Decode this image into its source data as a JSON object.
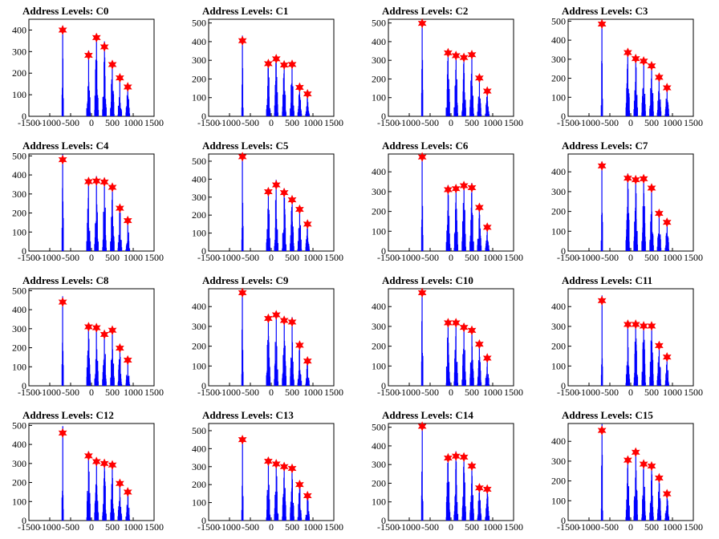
{
  "colors": {
    "histogram": "#0000ff",
    "marker": "#ff0000",
    "frame": "#000000",
    "background": "#ffffff"
  },
  "chart_data": [
    {
      "type": "bar",
      "title": "Address Levels: C0",
      "xlim": [
        -1500,
        1500
      ],
      "ylim": [
        0,
        450
      ],
      "x_ticks": [
        "-1500",
        "-1000",
        "-500",
        "0",
        "500",
        "1000",
        "1500"
      ],
      "y_ticks": [
        "0",
        "100",
        "200",
        "300",
        "400"
      ],
      "peaks": [
        {
          "x": -690,
          "y": 400
        },
        {
          "x": -70,
          "y": 283
        },
        {
          "x": 120,
          "y": 365
        },
        {
          "x": 310,
          "y": 322
        },
        {
          "x": 500,
          "y": 240
        },
        {
          "x": 680,
          "y": 178
        },
        {
          "x": 870,
          "y": 136
        }
      ]
    },
    {
      "type": "bar",
      "title": "Address Levels: C1",
      "xlim": [
        -1500,
        1500
      ],
      "ylim": [
        0,
        520
      ],
      "x_ticks": [
        "-1500",
        "-1000",
        "-500",
        "0",
        "500",
        "1000",
        "1500"
      ],
      "y_ticks": [
        "0",
        "100",
        "200",
        "300",
        "400",
        "500"
      ],
      "peaks": [
        {
          "x": -690,
          "y": 405
        },
        {
          "x": -70,
          "y": 282
        },
        {
          "x": 120,
          "y": 308
        },
        {
          "x": 310,
          "y": 275
        },
        {
          "x": 500,
          "y": 278
        },
        {
          "x": 680,
          "y": 155
        },
        {
          "x": 870,
          "y": 120
        }
      ]
    },
    {
      "type": "bar",
      "title": "Address Levels: C2",
      "xlim": [
        -1500,
        1500
      ],
      "ylim": [
        0,
        520
      ],
      "x_ticks": [
        "-1500",
        "-1000",
        "-500",
        "0",
        "500",
        "1000",
        "1500"
      ],
      "y_ticks": [
        "0",
        "100",
        "200",
        "300",
        "400",
        "500"
      ],
      "peaks": [
        {
          "x": -690,
          "y": 498
        },
        {
          "x": -70,
          "y": 340
        },
        {
          "x": 120,
          "y": 325
        },
        {
          "x": 310,
          "y": 315
        },
        {
          "x": 500,
          "y": 330
        },
        {
          "x": 680,
          "y": 205
        },
        {
          "x": 870,
          "y": 135
        }
      ]
    },
    {
      "type": "bar",
      "title": "Address Levels: C3",
      "xlim": [
        -1500,
        1500
      ],
      "ylim": [
        0,
        510
      ],
      "x_ticks": [
        "-1500",
        "-1000",
        "-500",
        "0",
        "500",
        "1000",
        "1500"
      ],
      "y_ticks": [
        "0",
        "100",
        "200",
        "300",
        "400",
        "500"
      ],
      "peaks": [
        {
          "x": -690,
          "y": 485
        },
        {
          "x": -70,
          "y": 335
        },
        {
          "x": 120,
          "y": 303
        },
        {
          "x": 310,
          "y": 290
        },
        {
          "x": 500,
          "y": 265
        },
        {
          "x": 680,
          "y": 205
        },
        {
          "x": 870,
          "y": 150
        }
      ]
    },
    {
      "type": "bar",
      "title": "Address Levels: C4",
      "xlim": [
        -1500,
        1500
      ],
      "ylim": [
        0,
        510
      ],
      "x_ticks": [
        "-1500",
        "-1000",
        "-500",
        "0",
        "500",
        "1000",
        "1500"
      ],
      "y_ticks": [
        "0",
        "100",
        "200",
        "300",
        "400",
        "500"
      ],
      "peaks": [
        {
          "x": -690,
          "y": 480
        },
        {
          "x": -70,
          "y": 365
        },
        {
          "x": 120,
          "y": 368
        },
        {
          "x": 310,
          "y": 363
        },
        {
          "x": 500,
          "y": 335
        },
        {
          "x": 680,
          "y": 225
        },
        {
          "x": 870,
          "y": 160
        }
      ]
    },
    {
      "type": "bar",
      "title": "Address Levels: C5",
      "xlim": [
        -1500,
        1500
      ],
      "ylim": [
        0,
        540
      ],
      "x_ticks": [
        "-1500",
        "-1000",
        "-500",
        "0",
        "500",
        "1000",
        "1500"
      ],
      "y_ticks": [
        "0",
        "100",
        "200",
        "300",
        "400",
        "500"
      ],
      "peaks": [
        {
          "x": -690,
          "y": 525
        },
        {
          "x": -70,
          "y": 330
        },
        {
          "x": 120,
          "y": 368
        },
        {
          "x": 310,
          "y": 325
        },
        {
          "x": 500,
          "y": 285
        },
        {
          "x": 680,
          "y": 232
        },
        {
          "x": 870,
          "y": 150
        }
      ]
    },
    {
      "type": "bar",
      "title": "Address Levels: C6",
      "xlim": [
        -1500,
        1500
      ],
      "ylim": [
        0,
        490
      ],
      "x_ticks": [
        "-1500",
        "-1000",
        "-500",
        "0",
        "500",
        "1000",
        "1500"
      ],
      "y_ticks": [
        "0",
        "100",
        "200",
        "300",
        "400"
      ],
      "peaks": [
        {
          "x": -690,
          "y": 475
        },
        {
          "x": -70,
          "y": 310
        },
        {
          "x": 120,
          "y": 315
        },
        {
          "x": 310,
          "y": 330
        },
        {
          "x": 500,
          "y": 320
        },
        {
          "x": 680,
          "y": 220
        },
        {
          "x": 870,
          "y": 120
        }
      ]
    },
    {
      "type": "bar",
      "title": "Address Levels: C7",
      "xlim": [
        -1500,
        1500
      ],
      "ylim": [
        0,
        490
      ],
      "x_ticks": [
        "-1500",
        "-1000",
        "-500",
        "0",
        "500",
        "1000",
        "1500"
      ],
      "y_ticks": [
        "0",
        "100",
        "200",
        "300",
        "400"
      ],
      "peaks": [
        {
          "x": -690,
          "y": 430
        },
        {
          "x": -70,
          "y": 368
        },
        {
          "x": 120,
          "y": 360
        },
        {
          "x": 310,
          "y": 365
        },
        {
          "x": 500,
          "y": 318
        },
        {
          "x": 680,
          "y": 190
        },
        {
          "x": 870,
          "y": 145
        }
      ]
    },
    {
      "type": "bar",
      "title": "Address Levels: C8",
      "xlim": [
        -1500,
        1500
      ],
      "ylim": [
        0,
        510
      ],
      "x_ticks": [
        "-1500",
        "-1000",
        "-500",
        "0",
        "500",
        "1000",
        "1500"
      ],
      "y_ticks": [
        "0",
        "100",
        "200",
        "300",
        "400",
        "500"
      ],
      "peaks": [
        {
          "x": -690,
          "y": 440
        },
        {
          "x": -70,
          "y": 310
        },
        {
          "x": 120,
          "y": 305
        },
        {
          "x": 310,
          "y": 270
        },
        {
          "x": 500,
          "y": 292
        },
        {
          "x": 680,
          "y": 198
        },
        {
          "x": 870,
          "y": 135
        }
      ]
    },
    {
      "type": "bar",
      "title": "Address Levels: C9",
      "xlim": [
        -1500,
        1500
      ],
      "ylim": [
        0,
        490
      ],
      "x_ticks": [
        "-1500",
        "-1000",
        "-500",
        "0",
        "500",
        "1000",
        "1500"
      ],
      "y_ticks": [
        "0",
        "100",
        "200",
        "300",
        "400"
      ],
      "peaks": [
        {
          "x": -690,
          "y": 470
        },
        {
          "x": -70,
          "y": 340
        },
        {
          "x": 120,
          "y": 358
        },
        {
          "x": 310,
          "y": 330
        },
        {
          "x": 500,
          "y": 322
        },
        {
          "x": 680,
          "y": 205
        },
        {
          "x": 870,
          "y": 125
        }
      ]
    },
    {
      "type": "bar",
      "title": "Address Levels: C10",
      "xlim": [
        -1500,
        1500
      ],
      "ylim": [
        0,
        490
      ],
      "x_ticks": [
        "-1500",
        "-1000",
        "-500",
        "0",
        "500",
        "1000",
        "1500"
      ],
      "y_ticks": [
        "0",
        "100",
        "200",
        "300",
        "400"
      ],
      "peaks": [
        {
          "x": -690,
          "y": 470
        },
        {
          "x": -70,
          "y": 318
        },
        {
          "x": 120,
          "y": 318
        },
        {
          "x": 310,
          "y": 295
        },
        {
          "x": 500,
          "y": 280
        },
        {
          "x": 680,
          "y": 210
        },
        {
          "x": 870,
          "y": 140
        }
      ]
    },
    {
      "type": "bar",
      "title": "Address Levels: C11",
      "xlim": [
        -1500,
        1500
      ],
      "ylim": [
        0,
        490
      ],
      "x_ticks": [
        "-1500",
        "-1000",
        "-500",
        "0",
        "500",
        "1000",
        "1500"
      ],
      "y_ticks": [
        "0",
        "100",
        "200",
        "300",
        "400"
      ],
      "peaks": [
        {
          "x": -690,
          "y": 430
        },
        {
          "x": -70,
          "y": 310
        },
        {
          "x": 120,
          "y": 310
        },
        {
          "x": 310,
          "y": 302
        },
        {
          "x": 500,
          "y": 302
        },
        {
          "x": 680,
          "y": 203
        },
        {
          "x": 870,
          "y": 145
        }
      ]
    },
    {
      "type": "bar",
      "title": "Address Levels: C12",
      "xlim": [
        -1500,
        1500
      ],
      "ylim": [
        0,
        510
      ],
      "x_ticks": [
        "-1500",
        "-1000",
        "-500",
        "0",
        "500",
        "1000",
        "1500"
      ],
      "y_ticks": [
        "0",
        "100",
        "200",
        "300",
        "400",
        "500"
      ],
      "peaks": [
        {
          "x": -690,
          "y": 460
        },
        {
          "x": -70,
          "y": 340
        },
        {
          "x": 120,
          "y": 310
        },
        {
          "x": 310,
          "y": 300
        },
        {
          "x": 500,
          "y": 292
        },
        {
          "x": 680,
          "y": 195
        },
        {
          "x": 870,
          "y": 150
        }
      ]
    },
    {
      "type": "bar",
      "title": "Address Levels: C13",
      "xlim": [
        -1500,
        1500
      ],
      "ylim": [
        0,
        540
      ],
      "x_ticks": [
        "-1500",
        "-1000",
        "-500",
        "0",
        "500",
        "1000",
        "1500"
      ],
      "y_ticks": [
        "0",
        "100",
        "200",
        "300",
        "400",
        "500"
      ],
      "peaks": [
        {
          "x": -690,
          "y": 450
        },
        {
          "x": -70,
          "y": 330
        },
        {
          "x": 120,
          "y": 315
        },
        {
          "x": 310,
          "y": 300
        },
        {
          "x": 500,
          "y": 290
        },
        {
          "x": 680,
          "y": 200
        },
        {
          "x": 870,
          "y": 138
        }
      ]
    },
    {
      "type": "bar",
      "title": "Address Levels: C14",
      "xlim": [
        -1500,
        1500
      ],
      "ylim": [
        0,
        520
      ],
      "x_ticks": [
        "-1500",
        "-1000",
        "-500",
        "0",
        "500",
        "1000",
        "1500"
      ],
      "y_ticks": [
        "0",
        "100",
        "200",
        "300",
        "400",
        "500"
      ],
      "peaks": [
        {
          "x": -690,
          "y": 505
        },
        {
          "x": -70,
          "y": 335
        },
        {
          "x": 120,
          "y": 345
        },
        {
          "x": 310,
          "y": 340
        },
        {
          "x": 500,
          "y": 292
        },
        {
          "x": 680,
          "y": 175
        },
        {
          "x": 870,
          "y": 168
        }
      ]
    },
    {
      "type": "bar",
      "title": "Address Levels: C15",
      "xlim": [
        -1500,
        1500
      ],
      "ylim": [
        0,
        490
      ],
      "x_ticks": [
        "-1500",
        "-1000",
        "-500",
        "0",
        "500",
        "1000",
        "1500"
      ],
      "y_ticks": [
        "0",
        "100",
        "200",
        "300",
        "400"
      ],
      "peaks": [
        {
          "x": -690,
          "y": 455
        },
        {
          "x": -70,
          "y": 305
        },
        {
          "x": 120,
          "y": 345
        },
        {
          "x": 310,
          "y": 285
        },
        {
          "x": 500,
          "y": 275
        },
        {
          "x": 680,
          "y": 215
        },
        {
          "x": 870,
          "y": 135
        }
      ]
    }
  ]
}
